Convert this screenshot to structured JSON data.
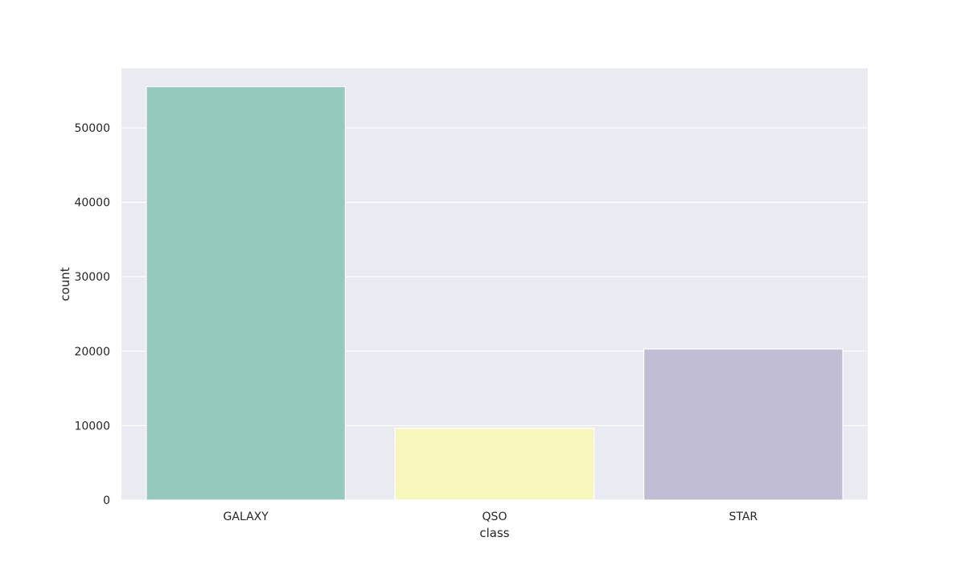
{
  "chart_data": {
    "type": "bar",
    "categories": [
      "GALAXY",
      "QSO",
      "STAR"
    ],
    "values": [
      55550,
      9650,
      20300
    ],
    "colors": [
      "#96c9be",
      "#f6f6bd",
      "#c1bdd5"
    ],
    "title": "",
    "xlabel": "class",
    "ylabel": "count",
    "ylim": [
      0,
      58000
    ],
    "yticks": [
      0,
      10000,
      20000,
      30000,
      40000,
      50000
    ],
    "grid": true,
    "background": "#eaeaf2",
    "grid_color": "#ffffff"
  }
}
